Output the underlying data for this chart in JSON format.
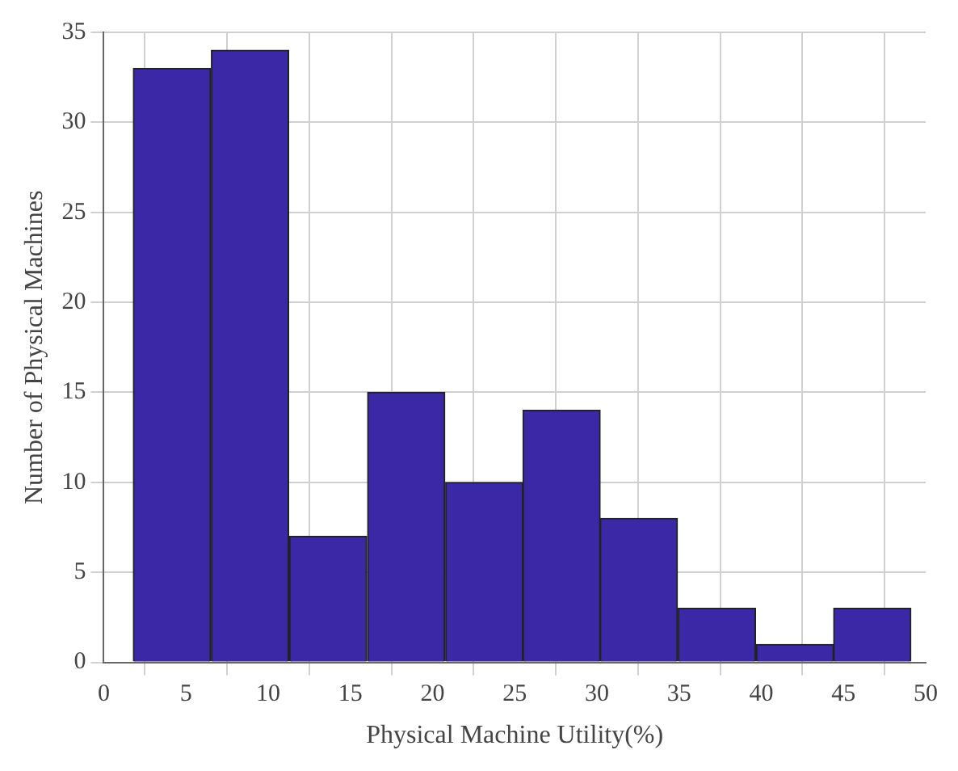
{
  "chart_data": {
    "type": "histogram",
    "xlabel": "Physical Machine Utility(%)",
    "ylabel": "Number of Physical Machines",
    "bins": [
      1.8,
      6.5,
      11.3,
      16.0,
      20.8,
      25.5,
      30.2,
      34.9,
      39.7,
      44.4,
      49.1
    ],
    "values": [
      33,
      34,
      7,
      15,
      10,
      14,
      8,
      3,
      1,
      3
    ],
    "color": "#3b28a6",
    "xlim": [
      0,
      50
    ],
    "xticks": [
      0,
      5,
      10,
      15,
      20,
      25,
      30,
      35,
      40,
      45,
      50
    ],
    "ylim": [
      0,
      35
    ],
    "yticks": [
      0,
      5,
      10,
      15,
      20,
      25,
      30,
      35
    ],
    "grid": true
  }
}
